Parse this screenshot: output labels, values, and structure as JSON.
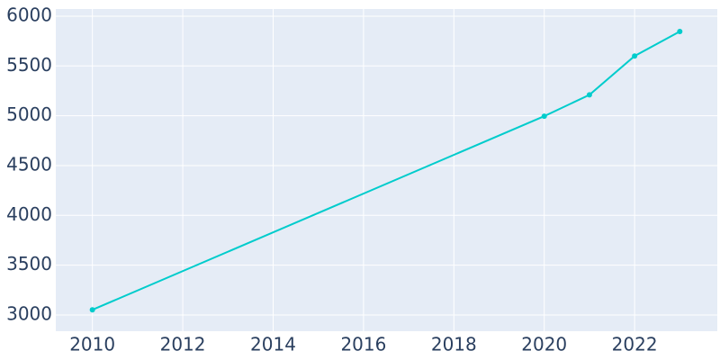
{
  "chart_data": {
    "type": "line",
    "x": [
      2010,
      2020,
      2021,
      2022,
      2023
    ],
    "series": [
      {
        "color": "#00cccc",
        "values": [
          3052,
          4996,
          5210,
          5600,
          5846
        ]
      }
    ],
    "xlim": [
      2009.19,
      2023.83
    ],
    "xticks": [
      2010,
      2012,
      2014,
      2016,
      2018,
      2020,
      2022
    ],
    "ylim": [
      2837,
      6072
    ],
    "yticks": [
      3000,
      3500,
      4000,
      4500,
      5000,
      5500,
      6000
    ],
    "grid": true
  }
}
